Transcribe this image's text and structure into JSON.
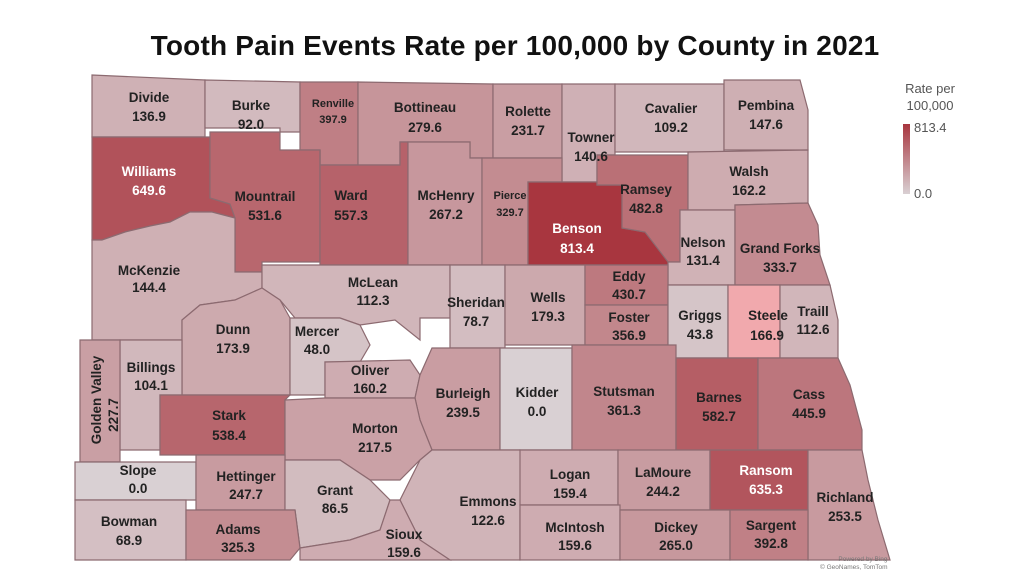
{
  "title": "Tooth Pain Events Rate per 100,000 by County in 2021",
  "legend": {
    "title_line1": "Rate per",
    "title_line2": "100,000",
    "max": "813.4",
    "min": "0.0"
  },
  "attribution": {
    "line1": "Powered by Bing",
    "line2": "© GeoNames, TomTom"
  },
  "scale": {
    "min": 0.0,
    "max": 813.4,
    "color_low": "#d9d0d3",
    "color_high": "#a8363f"
  },
  "counties": [
    {
      "name": "Divide",
      "value": "136.9"
    },
    {
      "name": "Burke",
      "value": "92.0"
    },
    {
      "name": "Renville",
      "value": "397.9"
    },
    {
      "name": "Bottineau",
      "value": "279.6"
    },
    {
      "name": "Rolette",
      "value": "231.7"
    },
    {
      "name": "Towner",
      "value": "140.6"
    },
    {
      "name": "Cavalier",
      "value": "109.2"
    },
    {
      "name": "Pembina",
      "value": "147.6"
    },
    {
      "name": "Williams",
      "value": "649.6"
    },
    {
      "name": "Mountrail",
      "value": "531.6"
    },
    {
      "name": "Ward",
      "value": "557.3"
    },
    {
      "name": "McHenry",
      "value": "267.2"
    },
    {
      "name": "Pierce",
      "value": "329.7"
    },
    {
      "name": "Benson",
      "value": "813.4"
    },
    {
      "name": "Ramsey",
      "value": "482.8"
    },
    {
      "name": "Walsh",
      "value": "162.2"
    },
    {
      "name": "Nelson",
      "value": "131.4"
    },
    {
      "name": "Grand Forks",
      "value": "333.7"
    },
    {
      "name": "McKenzie",
      "value": "144.4"
    },
    {
      "name": "McLean",
      "value": "112.3"
    },
    {
      "name": "Sheridan",
      "value": "78.7"
    },
    {
      "name": "Wells",
      "value": "179.3"
    },
    {
      "name": "Eddy",
      "value": "430.7"
    },
    {
      "name": "Foster",
      "value": "356.9"
    },
    {
      "name": "Griggs",
      "value": "43.8"
    },
    {
      "name": "Steele",
      "value": "166.9"
    },
    {
      "name": "Traill",
      "value": "112.6"
    },
    {
      "name": "Dunn",
      "value": "173.9"
    },
    {
      "name": "Mercer",
      "value": "48.0"
    },
    {
      "name": "Oliver",
      "value": "160.2"
    },
    {
      "name": "Billings",
      "value": "104.1"
    },
    {
      "name": "Golden Valley",
      "value": "227.7"
    },
    {
      "name": "Burleigh",
      "value": "239.5"
    },
    {
      "name": "Kidder",
      "value": "0.0"
    },
    {
      "name": "Stutsman",
      "value": "361.3"
    },
    {
      "name": "Barnes",
      "value": "582.7"
    },
    {
      "name": "Cass",
      "value": "445.9"
    },
    {
      "name": "Stark",
      "value": "538.4"
    },
    {
      "name": "Morton",
      "value": "217.5"
    },
    {
      "name": "Slope",
      "value": "0.0"
    },
    {
      "name": "Hettinger",
      "value": "247.7"
    },
    {
      "name": "Grant",
      "value": "86.5"
    },
    {
      "name": "Emmons",
      "value": "122.6"
    },
    {
      "name": "Logan",
      "value": "159.4"
    },
    {
      "name": "LaMoure",
      "value": "244.2"
    },
    {
      "name": "Ransom",
      "value": "635.3"
    },
    {
      "name": "Richland",
      "value": "253.5"
    },
    {
      "name": "Bowman",
      "value": "68.9"
    },
    {
      "name": "Adams",
      "value": "325.3"
    },
    {
      "name": "Sioux",
      "value": "159.6"
    },
    {
      "name": "McIntosh",
      "value": "159.6"
    },
    {
      "name": "Dickey",
      "value": "265.0"
    },
    {
      "name": "Sargent",
      "value": "392.8"
    }
  ]
}
